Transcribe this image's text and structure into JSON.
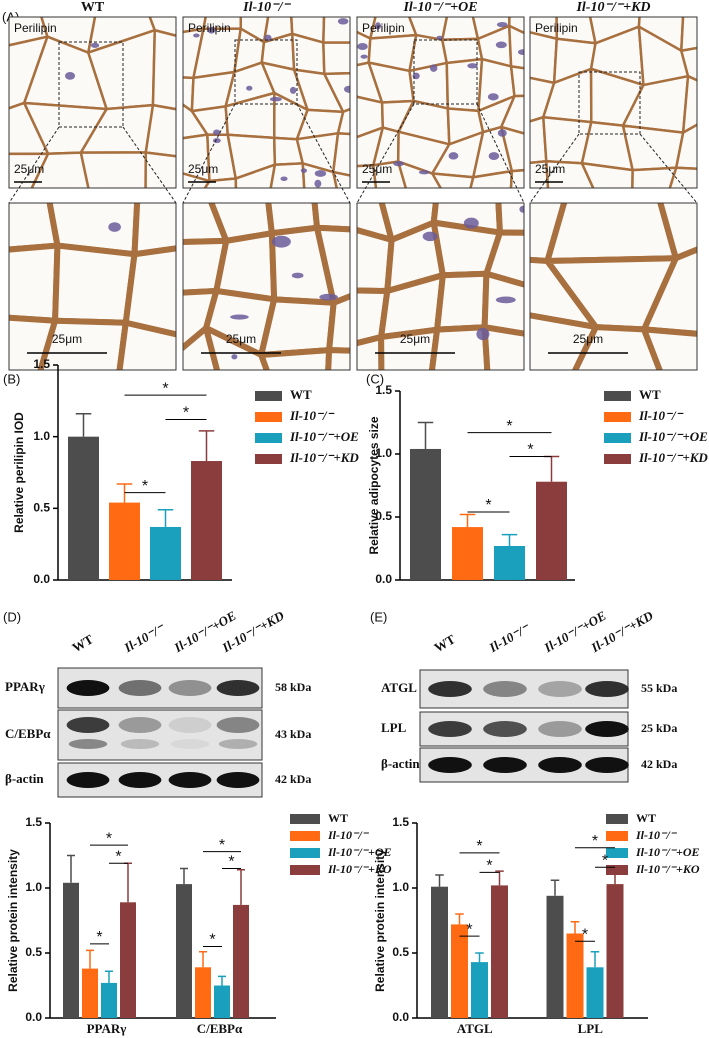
{
  "panel_labels": [
    "(A)",
    "(B)",
    "(C)",
    "(D)",
    "(E)"
  ],
  "histology": {
    "groups": [
      "WT",
      "Il-10⁻/⁻",
      "Il-10⁻/⁻+OE",
      "Il-10⁻/⁻+KD"
    ],
    "stain": "Perilipin",
    "scale_bar": "25μm"
  },
  "blots": [
    {
      "lanes": [
        "WT",
        "Il-10⁻/⁻",
        "Il-10⁻/⁻+OE",
        "Il-10⁻/⁻+KD"
      ],
      "proteins": [
        {
          "name": "PPARγ",
          "size": "58 kDa"
        },
        {
          "name": "C/EBPα",
          "size": "43 kDa"
        },
        {
          "name": "β-actin",
          "size": "42 kDa"
        }
      ]
    },
    {
      "lanes": [
        "WT",
        "Il-10⁻/⁻",
        "Il-10⁻/⁻+OE",
        "Il-10⁻/⁻+KD"
      ],
      "proteins": [
        {
          "name": "ATGL",
          "size": "55 kDa"
        },
        {
          "name": "LPL",
          "size": "25 kDa"
        },
        {
          "name": "β-actin",
          "size": "42 kDa"
        }
      ]
    }
  ],
  "chart_data": [
    {
      "type": "bar",
      "ylabel": "Relative perilipin IOD",
      "ylim": [
        0,
        1.5
      ],
      "yticks": [
        {
          "value": 0,
          "label": "0.0"
        },
        0.5,
        {
          "value": 1,
          "label": "1.0"
        },
        1.5
      ],
      "series": [
        {
          "name": "WT",
          "color": "#4d4d4d",
          "values": [
            1.0
          ],
          "errors": [
            0.16
          ]
        },
        {
          "name": "Il-10⁻/⁻",
          "color": "#ff6a13",
          "values": [
            0.54
          ],
          "errors": [
            0.13
          ]
        },
        {
          "name": "Il-10⁻/⁻+OE",
          "color": "#1aa0bc",
          "values": [
            0.37
          ],
          "errors": [
            0.12
          ]
        },
        {
          "name": "Il-10⁻/⁻+KD",
          "color": "#8b3d3d",
          "values": [
            0.83
          ],
          "errors": [
            0.21
          ]
        }
      ],
      "annotations": [
        "*",
        "*",
        "*"
      ]
    },
    {
      "type": "bar",
      "ylabel": "Relative  adipocytes size",
      "ylim": [
        0,
        1.5
      ],
      "yticks": [
        {
          "value": 0,
          "label": "0.0"
        },
        0.5,
        {
          "value": 1,
          "label": "1.0"
        },
        1.5
      ],
      "series": [
        {
          "name": "WT",
          "color": "#4d4d4d",
          "values": [
            1.04
          ],
          "errors": [
            0.21
          ]
        },
        {
          "name": "Il-10⁻/⁻",
          "color": "#ff6a13",
          "values": [
            0.42
          ],
          "errors": [
            0.1
          ]
        },
        {
          "name": "Il-10⁻/⁻+OE",
          "color": "#1aa0bc",
          "values": [
            0.27
          ],
          "errors": [
            0.09
          ]
        },
        {
          "name": "Il-10⁻/⁻+KD",
          "color": "#8b3d3d",
          "values": [
            0.78
          ],
          "errors": [
            0.2
          ]
        }
      ],
      "annotations": [
        "*",
        "*",
        "*"
      ]
    },
    {
      "type": "bar",
      "ylabel": "Relative protein intensity",
      "ylim": [
        0,
        1.5
      ],
      "yticks": [
        {
          "value": 0,
          "label": "0.0"
        },
        0.5,
        {
          "value": 1,
          "label": "1.0"
        },
        1.5
      ],
      "categories": [
        "PPARγ",
        "C/EBPα"
      ],
      "series": [
        {
          "name": "WT",
          "color": "#4d4d4d",
          "values": [
            1.04,
            1.03
          ],
          "errors": [
            0.21,
            0.12
          ]
        },
        {
          "name": "Il-10⁻/⁻",
          "color": "#ff6a13",
          "values": [
            0.38,
            0.39
          ],
          "errors": [
            0.14,
            0.12
          ]
        },
        {
          "name": "Il-10⁻/⁻+OE",
          "color": "#1aa0bc",
          "values": [
            0.27,
            0.25
          ],
          "errors": [
            0.09,
            0.07
          ]
        },
        {
          "name": "Il-10⁻/⁻+KO",
          "color": "#8b3d3d",
          "values": [
            0.89,
            0.87
          ],
          "errors": [
            0.3,
            0.27
          ]
        }
      ],
      "annotations": [
        "*",
        "*",
        "*",
        "*",
        "*",
        "*"
      ]
    },
    {
      "type": "bar",
      "ylabel": "Relative protein intensity",
      "ylim": [
        0,
        1.5
      ],
      "yticks": [
        {
          "value": 0,
          "label": "0.0"
        },
        0.5,
        {
          "value": 1,
          "label": "1.0"
        },
        1.5
      ],
      "categories": [
        "ATGL",
        "LPL"
      ],
      "series": [
        {
          "name": "WT",
          "color": "#4d4d4d",
          "values": [
            1.01,
            0.94
          ],
          "errors": [
            0.09,
            0.12
          ]
        },
        {
          "name": "Il-10⁻/⁻",
          "color": "#ff6a13",
          "values": [
            0.72,
            0.65
          ],
          "errors": [
            0.08,
            0.09
          ]
        },
        {
          "name": "Il-10⁻/⁻+OE",
          "color": "#1aa0bc",
          "values": [
            0.43,
            0.39
          ],
          "errors": [
            0.07,
            0.12
          ]
        },
        {
          "name": "Il-10⁻/⁻+KO",
          "color": "#8b3d3d",
          "values": [
            1.02,
            1.03
          ],
          "errors": [
            0.11,
            0.14
          ]
        }
      ],
      "annotations": [
        "*",
        "*",
        "*",
        "*",
        "*",
        "*"
      ]
    }
  ]
}
